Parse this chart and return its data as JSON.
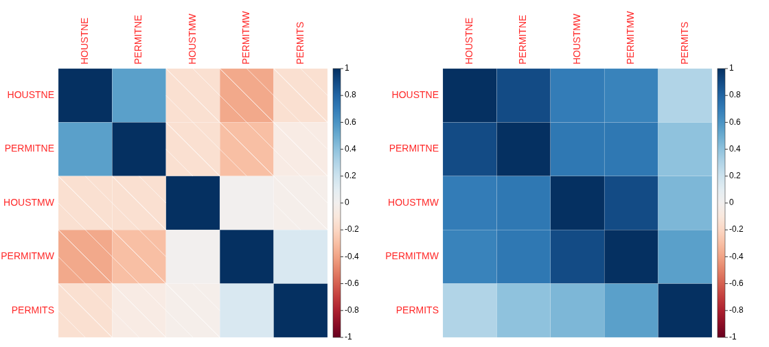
{
  "chart_data": [
    {
      "type": "heatmap",
      "categories": [
        "HOUSTNE",
        "PERMITNE",
        "HOUSTMW",
        "PERMITMW",
        "PERMITS"
      ],
      "y_categories": [
        "HOUSTNE",
        "PERMITNE",
        "HOUSTMW",
        "PERMITMW",
        "PERMITS"
      ],
      "cells": [
        [
          1,
          0.55,
          -0.15,
          -0.38,
          -0.15
        ],
        [
          0.55,
          1,
          -0.15,
          -0.3,
          -0.07
        ],
        [
          -0.15,
          -0.15,
          1,
          0.0,
          -0.03
        ],
        [
          -0.38,
          -0.3,
          0.0,
          1,
          0.15
        ],
        [
          -0.15,
          -0.07,
          -0.03,
          0.15,
          1
        ]
      ],
      "clim": [
        -1,
        1
      ],
      "cticks": [
        -1,
        -0.8,
        -0.6,
        -0.4,
        -0.2,
        0,
        0.2,
        0.4,
        0.6,
        0.8,
        1
      ]
    },
    {
      "type": "heatmap",
      "categories": [
        "HOUSTNE",
        "PERMITNE",
        "HOUSTMW",
        "PERMITMW",
        "PERMITS"
      ],
      "y_categories": [
        "HOUSTNE",
        "PERMITNE",
        "HOUSTMW",
        "PERMITMW",
        "PERMITS"
      ],
      "cells": [
        [
          1,
          0.9,
          0.7,
          0.67,
          0.3
        ],
        [
          0.9,
          1,
          0.72,
          0.72,
          0.4
        ],
        [
          0.7,
          0.72,
          1,
          0.9,
          0.45
        ],
        [
          0.67,
          0.72,
          0.9,
          1,
          0.55
        ],
        [
          0.3,
          0.4,
          0.45,
          0.55,
          1
        ]
      ],
      "clim": [
        -1,
        1
      ],
      "cticks": [
        -1,
        -0.8,
        -0.6,
        -0.4,
        -0.2,
        0,
        0.2,
        0.4,
        0.6,
        0.8,
        1
      ]
    }
  ]
}
